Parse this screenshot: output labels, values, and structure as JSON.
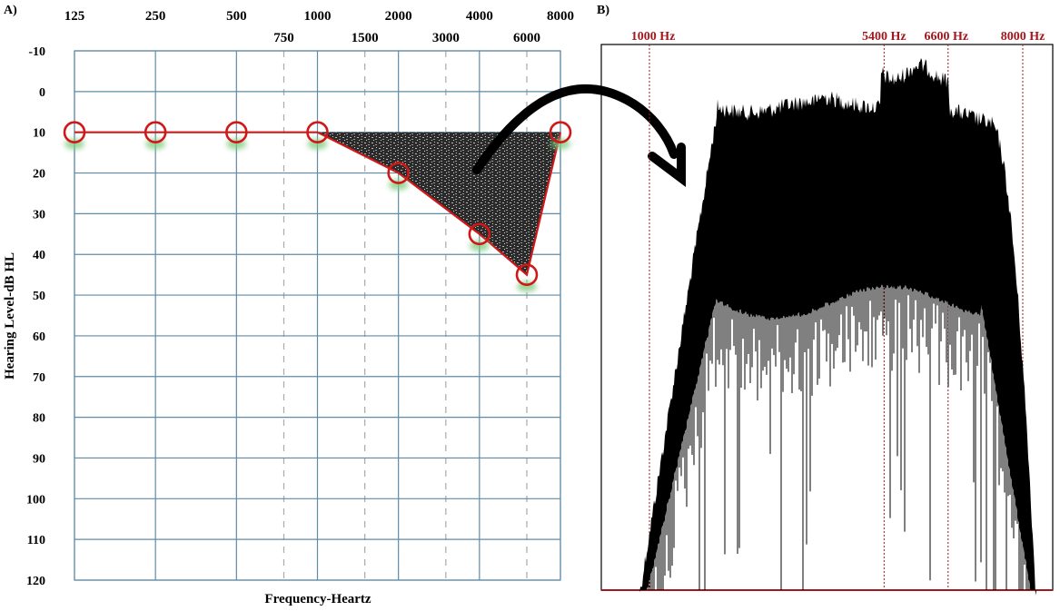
{
  "panel_a_label": "A)",
  "panel_b_label": "B)",
  "chart_data": [
    {
      "type": "line",
      "title": "",
      "xlabel": "Frequency-Heartz",
      "ylabel": "Hearing Level-dB HL",
      "x_ticks_primary": [
        "125",
        "250",
        "500",
        "1000",
        "2000",
        "4000",
        "8000"
      ],
      "x_ticks_secondary": [
        "750",
        "1500",
        "3000",
        "6000"
      ],
      "y_ticks": [
        "-10",
        "0",
        "10",
        "20",
        "30",
        "40",
        "50",
        "60",
        "70",
        "80",
        "90",
        "100",
        "110",
        "120"
      ],
      "ylim": [
        -10,
        120
      ],
      "y_inverted": true,
      "grid": true,
      "series": [
        {
          "x": [
            125,
            250,
            500,
            1000,
            2000,
            4000,
            6000,
            8000
          ],
          "values": [
            10,
            10,
            10,
            10,
            20,
            35,
            45,
            10
          ],
          "marker": "circle",
          "color": "#d01818"
        }
      ],
      "shaded_region": {
        "vertices": [
          [
            1000,
            10
          ],
          [
            8000,
            10
          ],
          [
            6000,
            45
          ],
          [
            4000,
            35
          ],
          [
            2000,
            20
          ]
        ],
        "fill": "dark textured"
      }
    },
    {
      "type": "area",
      "title": "",
      "xlabel": "",
      "ylabel": "",
      "annotations": [
        "1000 Hz",
        "5400 Hz",
        "6600 Hz",
        "8000 Hz"
      ],
      "marker_lines_hz": [
        1000,
        5400,
        6600,
        8000
      ],
      "line_color": "#a3181e",
      "fill_color": "#000000"
    }
  ]
}
